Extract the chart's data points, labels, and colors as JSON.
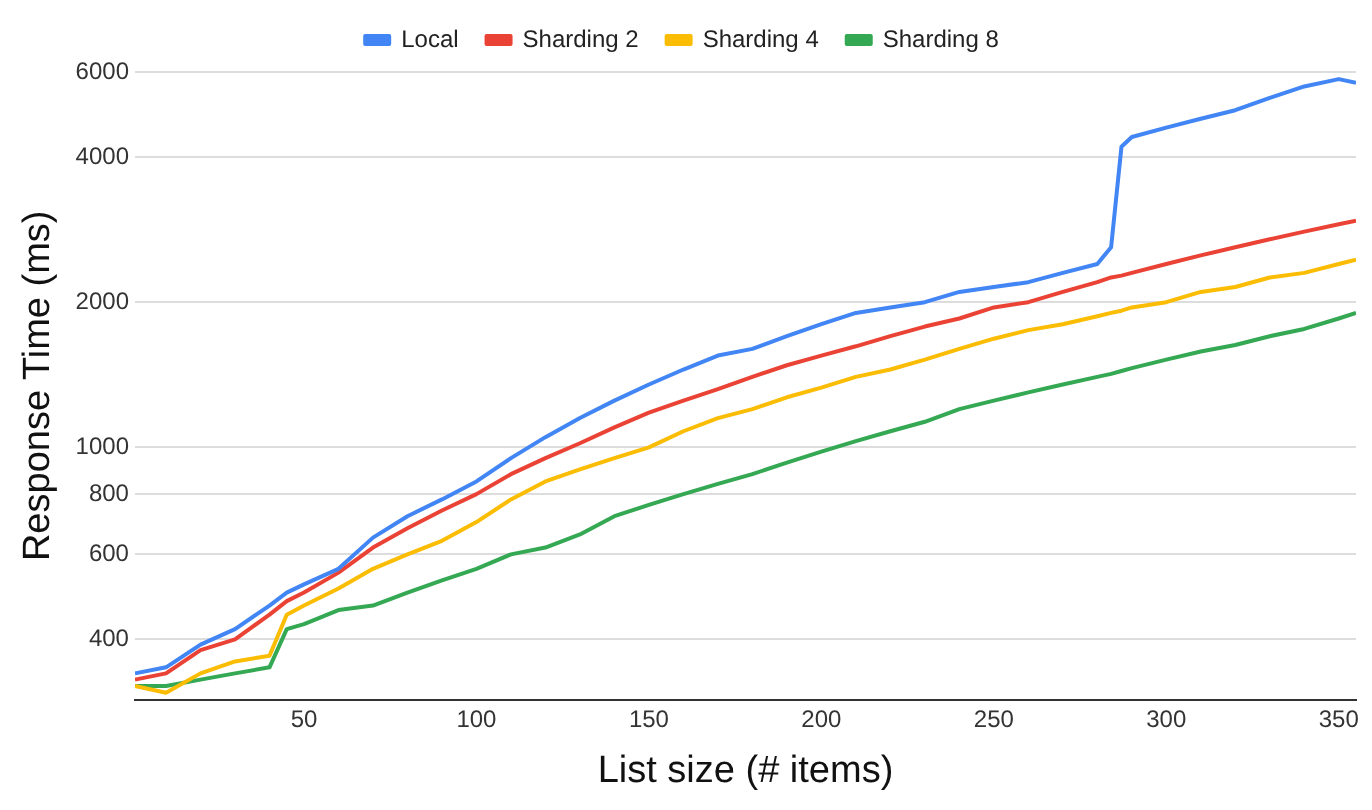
{
  "chart_data": {
    "type": "line",
    "xlabel": "List size (# items)",
    "ylabel": "Response Time (ms)",
    "log": "y",
    "grid": "y",
    "legend": "top",
    "marker": "none",
    "line_style": "solid",
    "xlim": [
      1,
      355
    ],
    "xticks": [
      50,
      100,
      150,
      200,
      250,
      300,
      350
    ],
    "ylim": [
      300,
      6000
    ],
    "yticks": [
      400,
      600,
      800,
      1000,
      2000,
      4000,
      6000
    ],
    "x": [
      1,
      10,
      20,
      30,
      40,
      45,
      50,
      60,
      70,
      80,
      90,
      100,
      110,
      120,
      130,
      140,
      150,
      160,
      170,
      180,
      190,
      200,
      210,
      220,
      230,
      240,
      250,
      260,
      270,
      280,
      284,
      287,
      290,
      300,
      310,
      320,
      330,
      340,
      350,
      355
    ],
    "series": [
      {
        "name": "Local",
        "color": "#4285f4",
        "values": [
          340,
          350,
          390,
          420,
          470,
          500,
          520,
          560,
          650,
          720,
          780,
          850,
          950,
          1050,
          1150,
          1250,
          1350,
          1450,
          1550,
          1600,
          1700,
          1800,
          1900,
          1950,
          2000,
          2100,
          2150,
          2200,
          2300,
          2400,
          2600,
          4200,
          4400,
          4600,
          4800,
          5000,
          5300,
          5600,
          5800,
          5700
        ]
      },
      {
        "name": "Sharding 2",
        "color": "#ea4335",
        "values": [
          330,
          340,
          380,
          400,
          450,
          480,
          500,
          550,
          620,
          680,
          740,
          800,
          880,
          950,
          1020,
          1100,
          1180,
          1250,
          1320,
          1400,
          1480,
          1550,
          1620,
          1700,
          1780,
          1850,
          1950,
          2000,
          2100,
          2200,
          2250,
          2270,
          2300,
          2400,
          2500,
          2600,
          2700,
          2800,
          2900,
          2950
        ]
      },
      {
        "name": "Sharding 4",
        "color": "#fbbc04",
        "values": [
          320,
          310,
          340,
          360,
          370,
          450,
          470,
          510,
          560,
          600,
          640,
          700,
          780,
          850,
          900,
          950,
          1000,
          1080,
          1150,
          1200,
          1270,
          1330,
          1400,
          1450,
          1520,
          1600,
          1680,
          1750,
          1800,
          1870,
          1900,
          1920,
          1950,
          2000,
          2100,
          2150,
          2250,
          2300,
          2400,
          2450
        ]
      },
      {
        "name": "Sharding 8",
        "color": "#34a853",
        "values": [
          320,
          320,
          330,
          340,
          350,
          420,
          430,
          460,
          470,
          500,
          530,
          560,
          600,
          620,
          660,
          720,
          760,
          800,
          840,
          880,
          930,
          980,
          1030,
          1080,
          1130,
          1200,
          1250,
          1300,
          1350,
          1400,
          1420,
          1440,
          1460,
          1520,
          1580,
          1630,
          1700,
          1760,
          1850,
          1900
        ]
      }
    ]
  }
}
